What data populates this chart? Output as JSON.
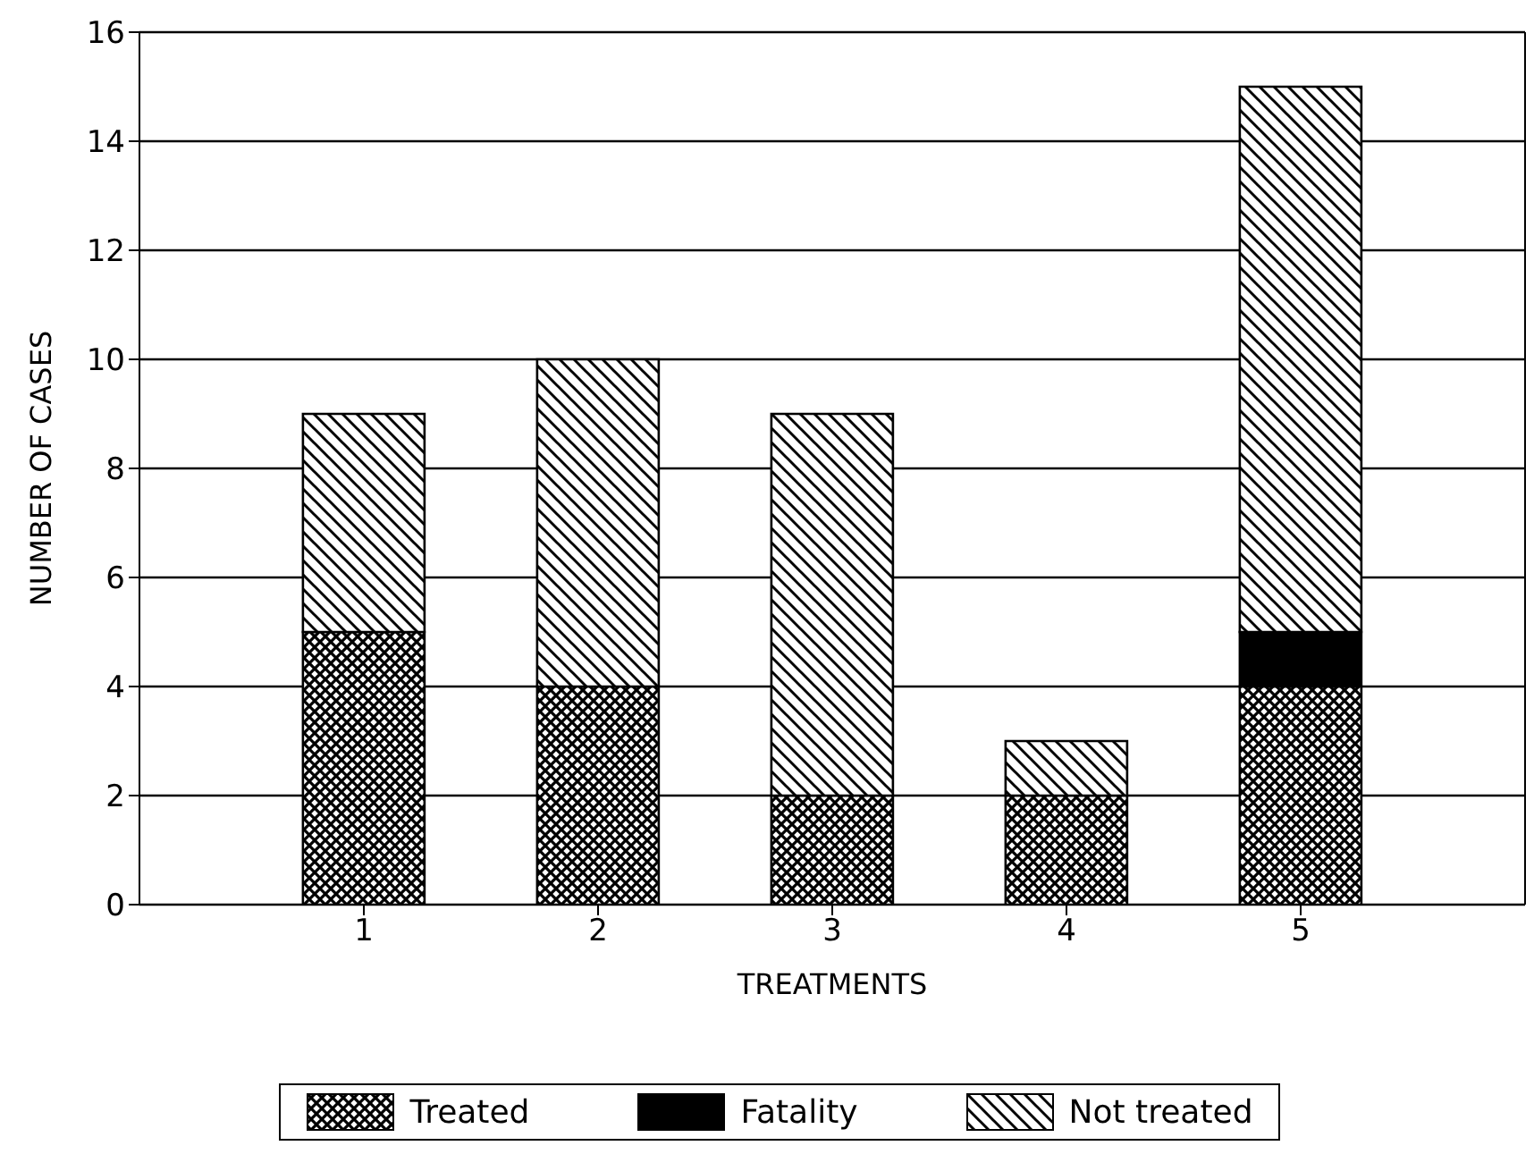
{
  "chart_data": {
    "type": "bar",
    "stacked": true,
    "xlabel": "TREATMENTS",
    "ylabel": "NUMBER OF CASES",
    "categories": [
      "1",
      "2",
      "3",
      "4",
      "5"
    ],
    "series": [
      {
        "name": "Treated",
        "color": "#000000",
        "values": [
          5,
          4,
          2,
          2,
          4
        ]
      },
      {
        "name": "Fatality",
        "color": "#000000",
        "values": [
          0,
          0,
          0,
          0,
          1
        ]
      },
      {
        "name": "Not treated",
        "color": "#000000",
        "values": [
          4,
          6,
          7,
          1,
          10
        ]
      }
    ],
    "ylim": [
      0,
      16
    ],
    "yticks": [
      0,
      2,
      4,
      6,
      8,
      10,
      12,
      14,
      16
    ],
    "grid": "y",
    "legend": "bottom"
  }
}
